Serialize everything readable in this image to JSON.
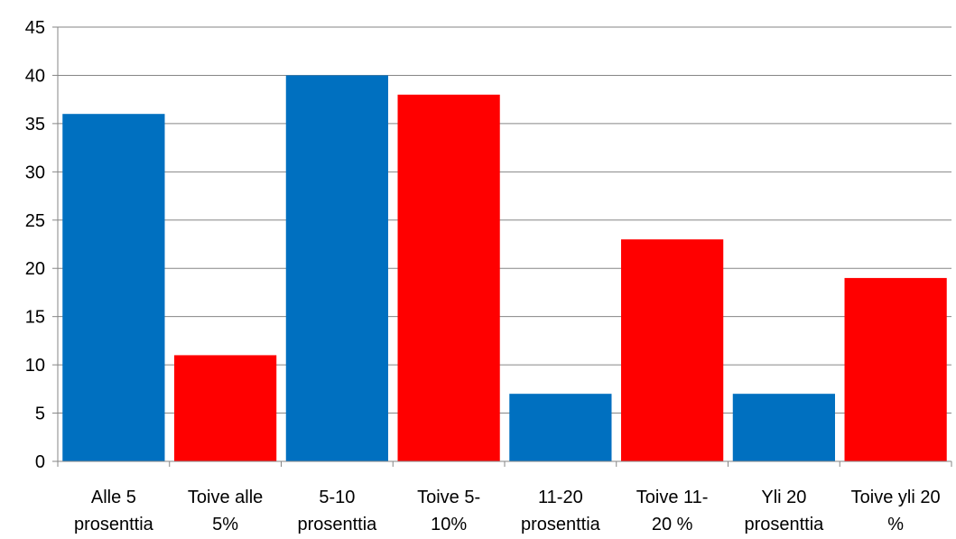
{
  "chart_data": {
    "type": "bar",
    "categories": [
      [
        "Alle 5",
        "prosenttia"
      ],
      [
        "Toive alle",
        "5%"
      ],
      [
        "5-10",
        "prosenttia"
      ],
      [
        "Toive 5-",
        "10%"
      ],
      [
        "11-20",
        "prosenttia"
      ],
      [
        "Toive 11-",
        "20 %"
      ],
      [
        "Yli 20",
        "prosenttia"
      ],
      [
        "Toive yli 20",
        "%"
      ]
    ],
    "values": [
      36,
      11,
      40,
      38,
      7,
      23,
      7,
      19
    ],
    "colors": [
      "#0070C0",
      "#FF0000",
      "#0070C0",
      "#FF0000",
      "#0070C0",
      "#FF0000",
      "#0070C0",
      "#FF0000"
    ],
    "ylim": [
      0,
      45
    ],
    "yticks": [
      0,
      5,
      10,
      15,
      20,
      25,
      30,
      35,
      40,
      45
    ],
    "grid": true,
    "title": "",
    "xlabel": "",
    "ylabel": ""
  }
}
